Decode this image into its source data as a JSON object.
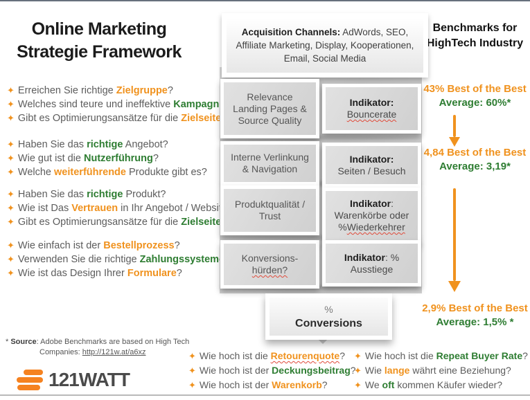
{
  "colors": {
    "orange": "#F0921E",
    "green": "#2E7D32",
    "logo_orange": "#F58220"
  },
  "icons": {
    "bullet": "✦",
    "down_arrow": "down-arrow"
  },
  "page": {
    "title_line1": "Online Marketing",
    "title_line2": "Strategie Framework"
  },
  "acquisition": {
    "lines": [
      [
        {
          "t": "Acquisition Channels:",
          "b": 1
        },
        {
          "t": " AdWords, SEO,"
        }
      ],
      [
        {
          "t": "Affiliate Marketing, Display, Kooperationen,"
        }
      ],
      [
        {
          "t": "Email, Social Media"
        }
      ]
    ]
  },
  "question_groups": [
    {
      "items": [
        [
          {
            "t": "Erreichen Sie richtige "
          },
          {
            "t": "Zielgruppe",
            "c": "orange"
          },
          {
            "t": "?"
          }
        ],
        [
          {
            "t": "Welches sind teure und ineffektive "
          },
          {
            "t": "Kampagnen",
            "c": "green"
          },
          {
            "t": "?"
          }
        ],
        [
          {
            "t": "Gibt es Optimierungsansätze für die "
          },
          {
            "t": "Zielseite",
            "c": "orange"
          },
          {
            "t": "?"
          }
        ]
      ]
    },
    {
      "items": [
        [
          {
            "t": "Haben Sie das "
          },
          {
            "t": "richtige",
            "c": "green"
          },
          {
            "t": " Angebot?"
          }
        ],
        [
          {
            "t": "Wie gut ist die "
          },
          {
            "t": "Nutzerführung",
            "c": "green"
          },
          {
            "t": "?"
          }
        ],
        [
          {
            "t": "Welche "
          },
          {
            "t": "weiterführende",
            "c": "orange"
          },
          {
            "t": " Produkte gibt es?"
          }
        ]
      ]
    },
    {
      "items": [
        [
          {
            "t": "Haben Sie das "
          },
          {
            "t": "richtige",
            "c": "green"
          },
          {
            "t": " Produkt?"
          }
        ],
        [
          {
            "t": "Wie ist Das "
          },
          {
            "t": "Vertrauen",
            "c": "orange"
          },
          {
            "t": " in Ihr Angebot / Website?"
          }
        ],
        [
          {
            "t": "Gibt es Optimierungsansätze für die "
          },
          {
            "t": "Zielseite",
            "c": "green"
          },
          {
            "t": "?"
          }
        ]
      ]
    },
    {
      "items": [
        [
          {
            "t": "Wie einfach ist der "
          },
          {
            "t": "Bestellprozess",
            "c": "orange"
          },
          {
            "t": "?"
          }
        ],
        [
          {
            "t": "Verwenden Sie die richtige "
          },
          {
            "t": "Zahlungssysteme",
            "c": "green"
          },
          {
            "t": "?"
          }
        ],
        [
          {
            "t": "Wie ist das Design Ihrer "
          },
          {
            "t": "Formulare",
            "c": "orange"
          },
          {
            "t": "?"
          }
        ]
      ]
    }
  ],
  "funnel_rows": [
    {
      "factor": {
        "lines": [
          [
            {
              "t": "Relevance"
            }
          ],
          [
            {
              "t": "Landing Pages &"
            }
          ],
          [
            {
              "t": "Source Quality"
            }
          ]
        ]
      },
      "indicator": {
        "lines": [
          [
            {
              "t": "Indikator:",
              "b": 1
            }
          ],
          [
            {
              "t": "Bouncerate",
              "m": 1
            }
          ]
        ]
      }
    },
    {
      "factor": {
        "lines": [
          [
            {
              "t": "Interne Verlinkung"
            }
          ],
          [
            {
              "t": "& Navigation"
            }
          ]
        ]
      },
      "indicator": {
        "lines": [
          [
            {
              "t": "Indikator:",
              "b": 1
            }
          ],
          [
            {
              "t": "Seiten / Besuch"
            }
          ]
        ]
      }
    },
    {
      "factor": {
        "lines": [
          [
            {
              "t": "Produktqualität /"
            }
          ],
          [
            {
              "t": "Trust"
            }
          ]
        ]
      },
      "indicator": {
        "lines": [
          [
            {
              "t": "Indikator",
              "b": 1
            },
            {
              "t": ":"
            }
          ],
          [
            {
              "t": "Warenkörbe oder"
            }
          ],
          [
            {
              "t": "%"
            },
            {
              "t": "Wiederkehrer",
              "m": 1
            }
          ]
        ]
      }
    },
    {
      "factor": {
        "lines": [
          [
            {
              "t": "Konversions-"
            }
          ],
          [
            {
              "t": "hürden?",
              "m": 1
            }
          ]
        ]
      },
      "indicator": {
        "lines": [
          [
            {
              "t": "Indikator",
              "b": 1
            },
            {
              "t": ": %"
            }
          ],
          [
            {
              "t": "Ausstiege"
            }
          ]
        ]
      }
    }
  ],
  "conversions": {
    "lines": [
      [
        {
          "t": "%"
        }
      ],
      [
        {
          "t": "Conversions",
          "b": 1
        }
      ]
    ]
  },
  "benchmarks": {
    "title_line1": "Benchmarks for",
    "title_line2": "HighTech Industry",
    "items": [
      {
        "best": "43% Best of the Best",
        "average": "Average: 60%*"
      },
      {
        "best": "4,84 Best of the Best",
        "average": "Average: 3,19*"
      },
      {
        "best": "2,9%  Best of the Best",
        "average": "Average: 1,5% *"
      }
    ]
  },
  "footnote": {
    "marker": "* ",
    "label": "Source",
    "rest": ": Adobe Benchmarks are based on High Tech",
    "line2_prefix": "Companies: ",
    "link": "http://121w.at/a6xz"
  },
  "logo": {
    "text": "121WATT"
  },
  "bottom_groups": [
    {
      "items": [
        [
          {
            "t": "Wie hoch ist die "
          },
          {
            "t": "Retourenquote",
            "c": "orange",
            "m": 1
          },
          {
            "t": "?"
          }
        ],
        [
          {
            "t": "Wie hoch ist der "
          },
          {
            "t": "Deckungsbeitrag",
            "c": "green"
          },
          {
            "t": "?"
          }
        ],
        [
          {
            "t": "Wie hoch ist der "
          },
          {
            "t": "Warenkorb",
            "c": "orange"
          },
          {
            "t": "?"
          }
        ]
      ]
    },
    {
      "items": [
        [
          {
            "t": "Wie hoch ist die "
          },
          {
            "t": "Repeat Buyer Rate",
            "c": "green"
          },
          {
            "t": "?"
          }
        ],
        [
          {
            "t": "Wie "
          },
          {
            "t": "lange",
            "c": "orange"
          },
          {
            "t": " währt eine Beziehung?"
          }
        ],
        [
          {
            "t": "We "
          },
          {
            "t": "oft",
            "c": "green"
          },
          {
            "t": " kommen Käufer wieder?"
          }
        ]
      ]
    }
  ]
}
